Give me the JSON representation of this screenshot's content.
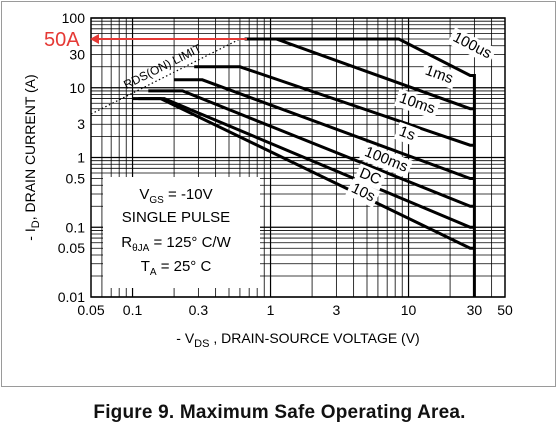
{
  "caption": "Figure 9. Maximum Safe Operating Area.",
  "colors": {
    "annotation": "#e53935",
    "curve": "#000000",
    "grid": "#000000",
    "frame": "#9a9a9a"
  },
  "chart_data": {
    "type": "line",
    "title": "",
    "xlabel": "- V_DS , DRAIN-SOURCE VOLTAGE (V)",
    "ylabel": "- I_D, DRAIN CURRENT (A)",
    "xlabel_parts": [
      "- V",
      "DS",
      " , DRAIN-SOURCE VOLTAGE (V)"
    ],
    "ylabel_parts": [
      "- I",
      "D",
      ", DRAIN CURRENT (A)"
    ],
    "x_scale": "log",
    "y_scale": "log",
    "xlim": [
      0.05,
      50
    ],
    "ylim": [
      0.01,
      100
    ],
    "x_ticks": [
      0.05,
      0.1,
      0.3,
      1,
      3,
      10,
      30,
      50
    ],
    "x_tick_labels": [
      "0.05",
      "0.1",
      "0.3",
      "1",
      "3",
      "10",
      "30",
      "50"
    ],
    "y_ticks": [
      0.01,
      0.05,
      0.1,
      0.5,
      1,
      3,
      10,
      30,
      100
    ],
    "y_tick_labels": [
      "0.01",
      "0.05",
      "0.1",
      "0.5",
      "1",
      "3",
      "10",
      "30",
      "100"
    ],
    "grid": true,
    "rds_limit": {
      "label": "RDS(ON) LIMIT",
      "x": [
        0.05,
        0.6
      ],
      "y": [
        4.2,
        50
      ]
    },
    "series": [
      {
        "name": "100us",
        "x": [
          0.65,
          8.5,
          28,
          30,
          30
        ],
        "y": [
          50,
          50,
          15,
          15,
          0.01
        ]
      },
      {
        "name": "1ms",
        "x": [
          0.65,
          1.1,
          28,
          30
        ],
        "y": [
          50,
          50,
          5,
          5
        ]
      },
      {
        "name": "10ms",
        "x": [
          0.28,
          0.6,
          28,
          30
        ],
        "y": [
          20,
          20,
          1.5,
          1.5
        ]
      },
      {
        "name": "1s",
        "x": [
          0.2,
          0.32,
          28,
          30
        ],
        "y": [
          13,
          13,
          0.5,
          0.5
        ]
      },
      {
        "name": "100ms",
        "x": [
          0.13,
          0.23,
          28,
          30
        ],
        "y": [
          9,
          9,
          0.2,
          0.2
        ]
      },
      {
        "name": "DC",
        "x": [
          0.11,
          0.17,
          28,
          30
        ],
        "y": [
          7,
          7,
          0.1,
          0.1
        ]
      },
      {
        "name": "10s",
        "x": [
          0.1,
          0.16,
          28,
          30
        ],
        "y": [
          7,
          7,
          0.05,
          0.05
        ]
      }
    ],
    "annotations": {
      "marker": {
        "label": "50A",
        "value": 50
      },
      "conditions": [
        {
          "main": "V",
          "sub": "GS",
          "tail": "  = -10V"
        },
        {
          "main": "SINGLE PULSE",
          "sub": "",
          "tail": ""
        },
        {
          "main": "R",
          "sub": "θJA",
          "tail": "  = 125° C/W"
        },
        {
          "main": "T",
          "sub": "A",
          "tail": " =   25° C"
        }
      ]
    }
  }
}
